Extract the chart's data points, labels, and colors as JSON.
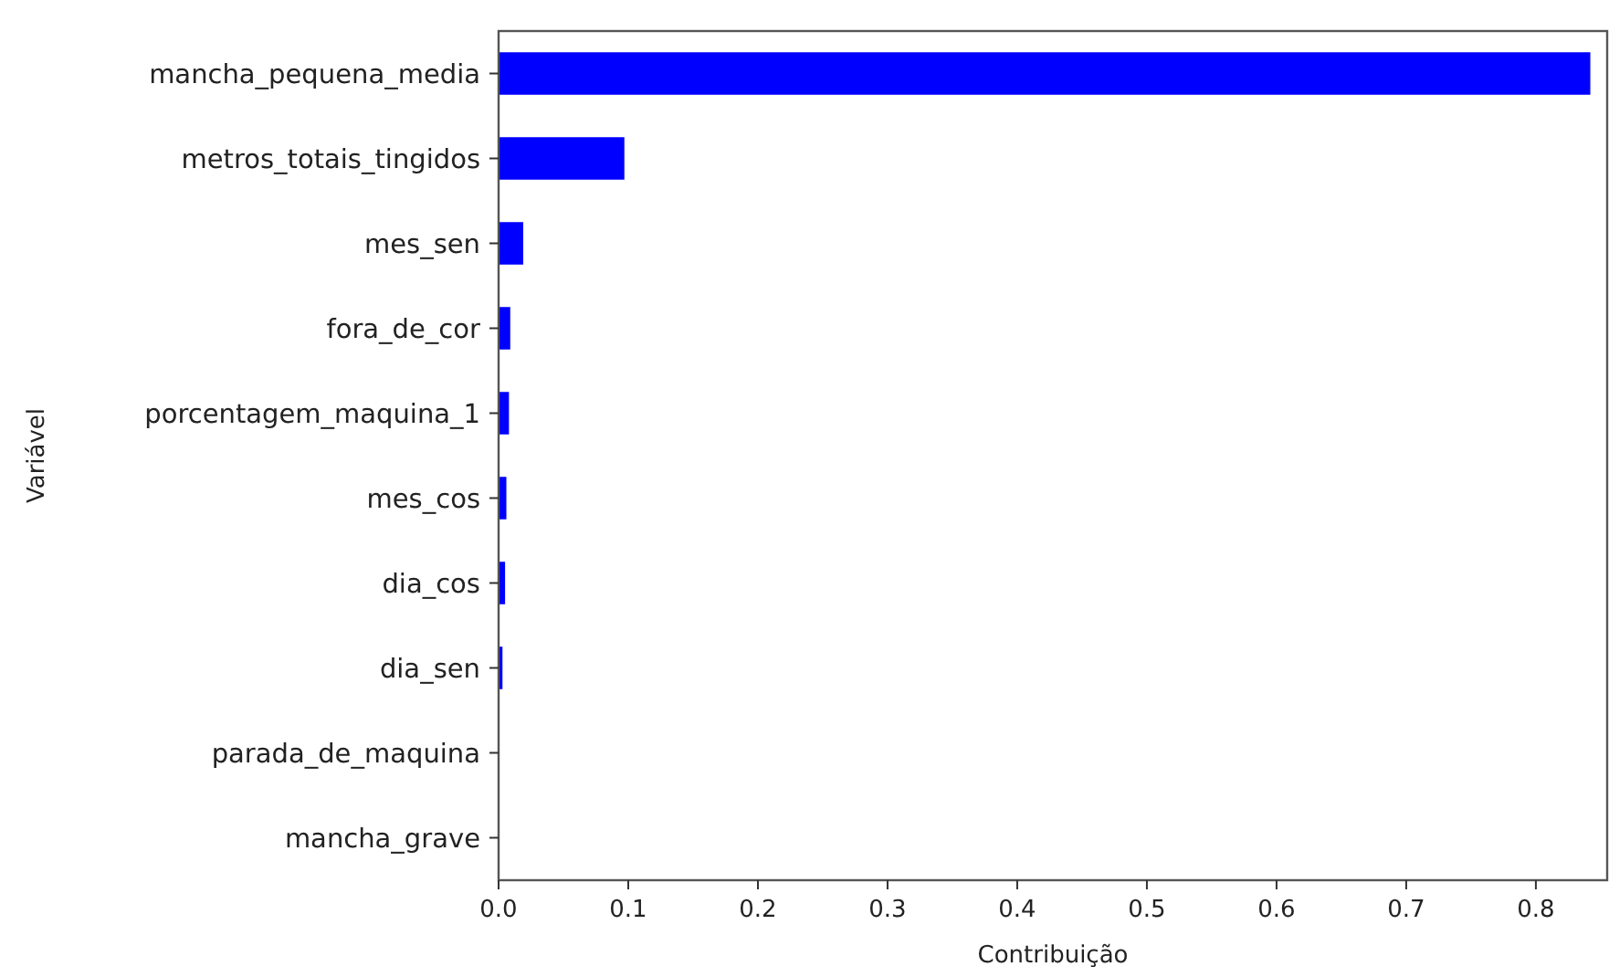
{
  "chart_data": {
    "type": "bar",
    "orientation": "horizontal",
    "xlabel": "Contribuição",
    "ylabel": "Variável",
    "categories": [
      "mancha_pequena_media",
      "metros_totais_tingidos",
      "mes_sen",
      "fora_de_cor",
      "porcentagem_maquina_1",
      "mes_cos",
      "dia_cos",
      "dia_sen",
      "parada_de_maquina",
      "mancha_grave"
    ],
    "values": [
      0.842,
      0.097,
      0.019,
      0.009,
      0.008,
      0.006,
      0.005,
      0.003,
      0,
      0
    ],
    "color": "#0000ff",
    "xlim": [
      0,
      0.855
    ],
    "xticks": [
      {
        "value": 0,
        "label": "0.0"
      },
      0.1,
      0.2,
      0.3,
      0.4,
      0.5,
      0.6,
      0.7,
      0.8
    ],
    "grid": false
  }
}
